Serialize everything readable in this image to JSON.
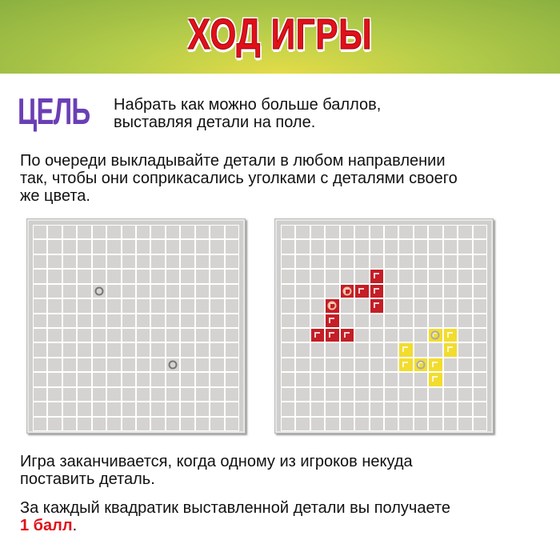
{
  "header": {
    "title": "ХОД ИГРЫ"
  },
  "goal": {
    "label": "ЦЕЛЬ",
    "text_line1": "Набрать как можно больше баллов,",
    "text_line2": "выставляя детали на поле."
  },
  "rules": {
    "placement_line1": "По очереди выкладывайте детали в любом направлении",
    "placement_line2": "так, чтобы они соприкасались уголками с деталями своего",
    "placement_line3": "же цвета.",
    "end_line1": "Игра заканчивается, когда одному из игроков некуда",
    "end_line2": "поставить деталь.",
    "score_line1": "За каждый квадратик выставленной детали вы получаете",
    "score_points": "1 балл",
    "score_dot": "."
  },
  "colors": {
    "red": "#c41e26",
    "yellow": "#f2dc2e",
    "goal": "#6a3fb5"
  },
  "boards": [
    {
      "size": 14,
      "start_points": [
        [
          4,
          4
        ],
        [
          9,
          9
        ]
      ],
      "pieces": []
    },
    {
      "size": 14,
      "start_points": [],
      "pieces": [
        {
          "color": "red",
          "cells": [
            [
              3,
              6
            ],
            [
              4,
              4
            ],
            [
              4,
              5
            ],
            [
              4,
              6
            ],
            [
              5,
              6
            ]
          ],
          "start": [
            4,
            4
          ]
        },
        {
          "color": "red",
          "cells": [
            [
              5,
              3
            ],
            [
              6,
              3
            ],
            [
              7,
              2
            ],
            [
              7,
              3
            ],
            [
              7,
              4
            ]
          ],
          "start": [
            5,
            3
          ]
        },
        {
          "color": "yellow",
          "cells": [
            [
              7,
              10
            ],
            [
              7,
              11
            ],
            [
              8,
              11
            ]
          ],
          "start": [
            7,
            10
          ]
        },
        {
          "color": "yellow",
          "cells": [
            [
              8,
              8
            ],
            [
              9,
              8
            ],
            [
              9,
              9
            ],
            [
              9,
              10
            ],
            [
              10,
              10
            ]
          ],
          "start": [
            9,
            9
          ]
        }
      ]
    }
  ]
}
